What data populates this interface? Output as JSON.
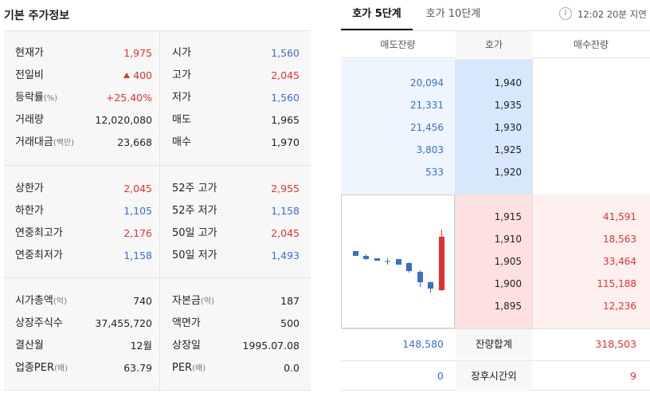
{
  "basic": {
    "title": "기본 주가정보",
    "sec1": {
      "left": [
        {
          "label": "현재가",
          "unit": "",
          "value": "1,975",
          "color": "red"
        },
        {
          "label": "전일비",
          "unit": "",
          "value": "400",
          "color": "red",
          "arrow": "up"
        },
        {
          "label": "등락률",
          "unit": "(%)",
          "value": "+25.40%",
          "color": "red"
        },
        {
          "label": "거래량",
          "unit": "",
          "value": "12,020,080",
          "color": "black"
        },
        {
          "label": "거래대금",
          "unit": "(백만)",
          "value": "23,668",
          "color": "black"
        }
      ],
      "right": [
        {
          "label": "시가",
          "unit": "",
          "value": "1,560",
          "color": "blue"
        },
        {
          "label": "고가",
          "unit": "",
          "value": "2,045",
          "color": "red"
        },
        {
          "label": "저가",
          "unit": "",
          "value": "1,560",
          "color": "blue"
        },
        {
          "label": "매도",
          "unit": "",
          "value": "1,965",
          "color": "black"
        },
        {
          "label": "매수",
          "unit": "",
          "value": "1,970",
          "color": "black"
        }
      ]
    },
    "sec2": {
      "left": [
        {
          "label": "상한가",
          "unit": "",
          "value": "2,045",
          "color": "red"
        },
        {
          "label": "하한가",
          "unit": "",
          "value": "1,105",
          "color": "blue"
        },
        {
          "label": "연중최고가",
          "unit": "",
          "value": "2,176",
          "color": "red"
        },
        {
          "label": "연중최저가",
          "unit": "",
          "value": "1,158",
          "color": "blue"
        }
      ],
      "right": [
        {
          "label": "52주 고가",
          "unit": "",
          "value": "2,955",
          "color": "red"
        },
        {
          "label": "52주 저가",
          "unit": "",
          "value": "1,158",
          "color": "blue"
        },
        {
          "label": "50일 고가",
          "unit": "",
          "value": "2,045",
          "color": "red"
        },
        {
          "label": "50일 저가",
          "unit": "",
          "value": "1,493",
          "color": "blue"
        }
      ]
    },
    "sec3": {
      "left": [
        {
          "label": "시가총액",
          "unit": "(억)",
          "value": "740",
          "color": "black"
        },
        {
          "label": "상장주식수",
          "unit": "",
          "value": "37,455,720",
          "color": "black"
        },
        {
          "label": "결산월",
          "unit": "",
          "value": "12월",
          "color": "black"
        },
        {
          "label": "업종PER",
          "unit": "(배)",
          "value": "63.79",
          "color": "black"
        }
      ],
      "right": [
        {
          "label": "자본금",
          "unit": "(억)",
          "value": "187",
          "color": "black"
        },
        {
          "label": "액면가",
          "unit": "",
          "value": "500",
          "color": "black"
        },
        {
          "label": "상장일",
          "unit": "",
          "value": "1995.07.08",
          "color": "black"
        },
        {
          "label": "PER",
          "unit": "(배)",
          "value": "0.0",
          "color": "black"
        }
      ]
    }
  },
  "orderbook": {
    "tabs": [
      {
        "label": "호가 5단계",
        "active": true
      },
      {
        "label": "호가 10단계",
        "active": false
      }
    ],
    "info_icon": "info-icon",
    "delay_text": "12:02 20분 지연",
    "headers": {
      "sell": "매도잔량",
      "price": "호가",
      "buy": "매수잔량"
    },
    "asks": [
      {
        "qty": "20,094",
        "price": "1,940"
      },
      {
        "qty": "21,331",
        "price": "1,935"
      },
      {
        "qty": "21,456",
        "price": "1,930"
      },
      {
        "qty": "3,803",
        "price": "1,925"
      },
      {
        "qty": "533",
        "price": "1,920"
      }
    ],
    "bids": [
      {
        "price": "1,915",
        "qty": "41,591"
      },
      {
        "price": "1,910",
        "qty": "18,563"
      },
      {
        "price": "1,905",
        "qty": "33,464"
      },
      {
        "price": "1,900",
        "qty": "115,188"
      },
      {
        "price": "1,895",
        "qty": "12,236"
      }
    ],
    "totals": {
      "sell": "148,580",
      "label": "잔량합계",
      "buy": "318,503"
    },
    "after_hours": {
      "sell": "0",
      "label": "장후시간외",
      "buy": "9"
    },
    "colors": {
      "ask_bg": "#eef5ff",
      "ask_price_bg": "#d7e8fd",
      "bid_bg": "#fff0f0",
      "bid_price_bg": "#ffe0e0",
      "up": "#e03131",
      "down": "#3a6fc9"
    }
  }
}
